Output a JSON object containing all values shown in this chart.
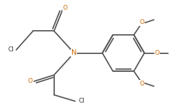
{
  "background": "#ffffff",
  "bond_color": "#555555",
  "bond_width": 1.3,
  "label_fontsize": 6.5,
  "atom_color": "#cc6600",
  "cl_color": "#333333",
  "figsize": [
    2.77,
    1.55
  ],
  "dpi": 100,
  "xlim": [
    0,
    9
  ],
  "ylim": [
    0,
    5
  ]
}
